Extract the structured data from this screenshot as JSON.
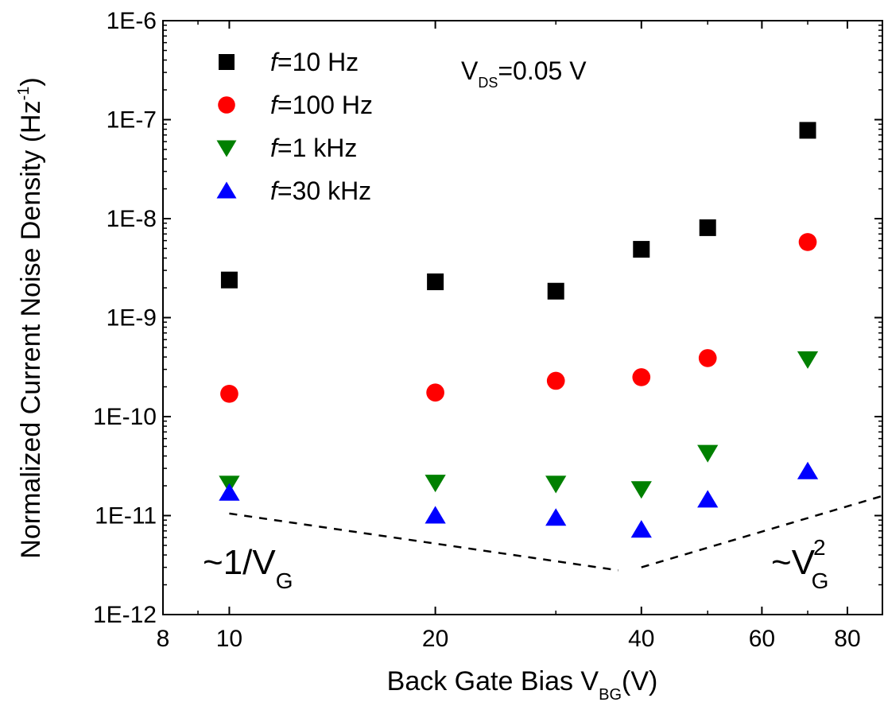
{
  "chart_data": {
    "type": "scatter",
    "x_scale": "log",
    "y_scale": "log",
    "xlim": [
      8,
      90
    ],
    "ylim": [
      1e-12,
      1e-06
    ],
    "x_ticks": [
      8,
      10,
      20,
      40,
      60,
      80
    ],
    "x_tick_labels": [
      "8",
      "10",
      "20",
      "40",
      "60",
      "80"
    ],
    "y_ticks": [
      1e-12,
      1e-11,
      1e-10,
      1e-09,
      1e-08,
      1e-07,
      1e-06
    ],
    "y_tick_labels": [
      "1E-12",
      "1E-11",
      "1E-10",
      "1E-9",
      "1E-8",
      "1E-7",
      "1E-6"
    ],
    "xlabel": {
      "main": "Back Gate Bias V",
      "sub": "BG",
      "tail": "(V)"
    },
    "ylabel": {
      "main": "Normalized Current Noise Density (Hz",
      "sup": "-1",
      "tail": ")"
    },
    "grid": false,
    "legend_position": "top-left",
    "x": [
      10,
      20,
      30,
      40,
      50,
      70
    ],
    "series": [
      {
        "name_prefix": "f",
        "name_suffix": "=10 Hz",
        "marker": "square",
        "color": "#000000",
        "values": [
          2.4e-09,
          2.3e-09,
          1.85e-09,
          4.9e-09,
          8.1e-09,
          7.8e-08
        ]
      },
      {
        "name_prefix": "f",
        "name_suffix": "=100 Hz",
        "marker": "circle",
        "color": "#ff0000",
        "values": [
          1.7e-10,
          1.75e-10,
          2.3e-10,
          2.5e-10,
          3.9e-10,
          5.8e-09
        ]
      },
      {
        "name_prefix": "f",
        "name_suffix": "=1 kHz",
        "marker": "triangle-down",
        "color": "#008000",
        "values": [
          2.1e-11,
          2.15e-11,
          2.1e-11,
          1.85e-11,
          4.3e-11,
          3.8e-10
        ]
      },
      {
        "name_prefix": "f",
        "name_suffix": "=30 kHz",
        "marker": "triangle-up",
        "color": "#0000ff",
        "values": [
          1.7e-11,
          1e-11,
          9.5e-12,
          7.2e-12,
          1.45e-11,
          2.8e-11
        ]
      }
    ],
    "trend_lines": [
      {
        "label": "1/V_G",
        "x": [
          10,
          37
        ],
        "y": [
          1.05e-11,
          2.8e-12
        ]
      },
      {
        "label": "V_G^2",
        "x": [
          40,
          90
        ],
        "y": [
          3e-12,
          1.58e-11
        ]
      }
    ],
    "annotations": {
      "vds": {
        "main": "V",
        "sub": "DS",
        "tail": "=0.05 V"
      },
      "inv": {
        "main": "~1/V",
        "sub": "G"
      },
      "sq": {
        "main": "~V",
        "sup": "2",
        "sub": "G"
      }
    }
  }
}
